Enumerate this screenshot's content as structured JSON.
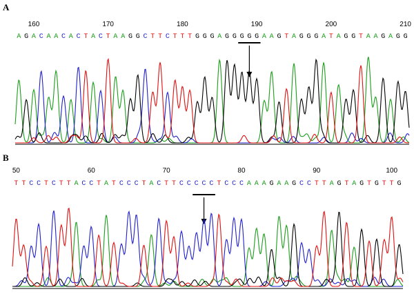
{
  "colors": {
    "A": "#1a9e1a",
    "C": "#1f1fd0",
    "G": "#000000",
    "T": "#e01010"
  },
  "panels": [
    {
      "label": "A",
      "positions": [
        "160",
        "170",
        "180",
        "190",
        "200",
        "210"
      ],
      "position_values": [
        160,
        170,
        180,
        190,
        200,
        210
      ],
      "sequence": "AGACAACACTACTAAGGCTTCTTTGGGAGGGGGAAGTAGGGATAGGTAAGAGG",
      "sequence_start": 158,
      "marked_bases": [
        188,
        190
      ],
      "arrow_position": 189
    },
    {
      "label": "B",
      "positions": [
        "50",
        "60",
        "70",
        "80",
        "90",
        "100"
      ],
      "position_values": [
        50,
        60,
        70,
        80,
        90,
        100
      ],
      "sequence": "TTCCTCTTACCTATCCCTACTTCCCCCTCCCAAAGAAGCCTTAGTAGTGTTG",
      "sequence_start": 50,
      "marked_bases": [
        74,
        76
      ],
      "arrow_position": 75
    }
  ]
}
